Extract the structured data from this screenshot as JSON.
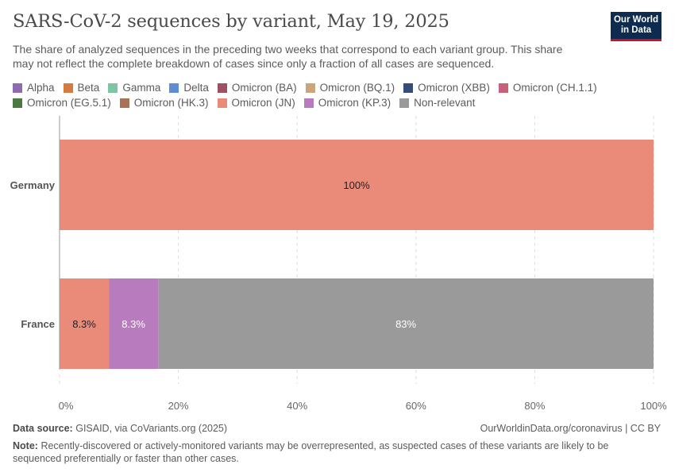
{
  "header": {
    "title": "SARS-CoV-2 sequences by variant, May 19, 2025",
    "subtitle": "The share of analyzed sequences in the preceding two weeks that correspond to each variant group. This share may not reflect the complete breakdown of cases since only a fraction of all cases are sequenced.",
    "logo_line1": "Our World",
    "logo_line2": "in Data"
  },
  "legend": {
    "rows": [
      [
        {
          "label": "Alpha",
          "color": "#8c6bb1"
        },
        {
          "label": "Beta",
          "color": "#d67a43"
        },
        {
          "label": "Gamma",
          "color": "#7ec4a5"
        },
        {
          "label": "Delta",
          "color": "#5b8fd2"
        },
        {
          "label": "Omicron (BA)",
          "color": "#9c5160"
        },
        {
          "label": "Omicron (BQ.1)",
          "color": "#c9a67c"
        },
        {
          "label": "Omicron (XBB)",
          "color": "#344d7a"
        },
        {
          "label": "Omicron (CH.1.1)",
          "color": "#c95f78"
        }
      ],
      [
        {
          "label": "Omicron (EG.5.1)",
          "color": "#4a7a42"
        },
        {
          "label": "Omicron (HK.3)",
          "color": "#a97256"
        },
        {
          "label": "Omicron (JN)",
          "color": "#ea8b7a"
        },
        {
          "label": "Omicron (KP.3)",
          "color": "#b87bbd"
        },
        {
          "label": "Non-relevant",
          "color": "#9a9a9a"
        }
      ]
    ]
  },
  "chart_data": {
    "type": "bar",
    "orientation": "horizontal",
    "stacked": true,
    "categories": [
      "Germany",
      "France"
    ],
    "series": [
      {
        "name": "Omicron (JN)",
        "color": "#ea8b7a",
        "values": [
          100,
          8.3
        ],
        "labels": [
          "100%",
          "8.3%"
        ],
        "label_color": "#222222"
      },
      {
        "name": "Omicron (KP.3)",
        "color": "#b87bbd",
        "values": [
          0,
          8.3
        ],
        "labels": [
          "",
          "8.3%"
        ],
        "label_color": "#ffffff"
      },
      {
        "name": "Non-relevant",
        "color": "#9a9a9a",
        "values": [
          0,
          83.4
        ],
        "labels": [
          "",
          "83%"
        ],
        "label_color": "#ffffff"
      }
    ],
    "xlim": [
      0,
      100
    ],
    "x_ticks": [
      0,
      20,
      40,
      60,
      80,
      100
    ],
    "x_tick_labels": [
      "0%",
      "20%",
      "40%",
      "60%",
      "80%",
      "100%"
    ],
    "grid": true
  },
  "footer": {
    "source_label": "Data source:",
    "source_text": "GISAID, via CoVariants.org (2025)",
    "url": "OurWorldinData.org/coronavirus | CC BY",
    "note_label": "Note:",
    "note_text": "Recently-discovered or actively-monitored variants may be overrepresented, as suspected cases of these variants are likely to be sequenced preferentially or faster than other cases."
  }
}
